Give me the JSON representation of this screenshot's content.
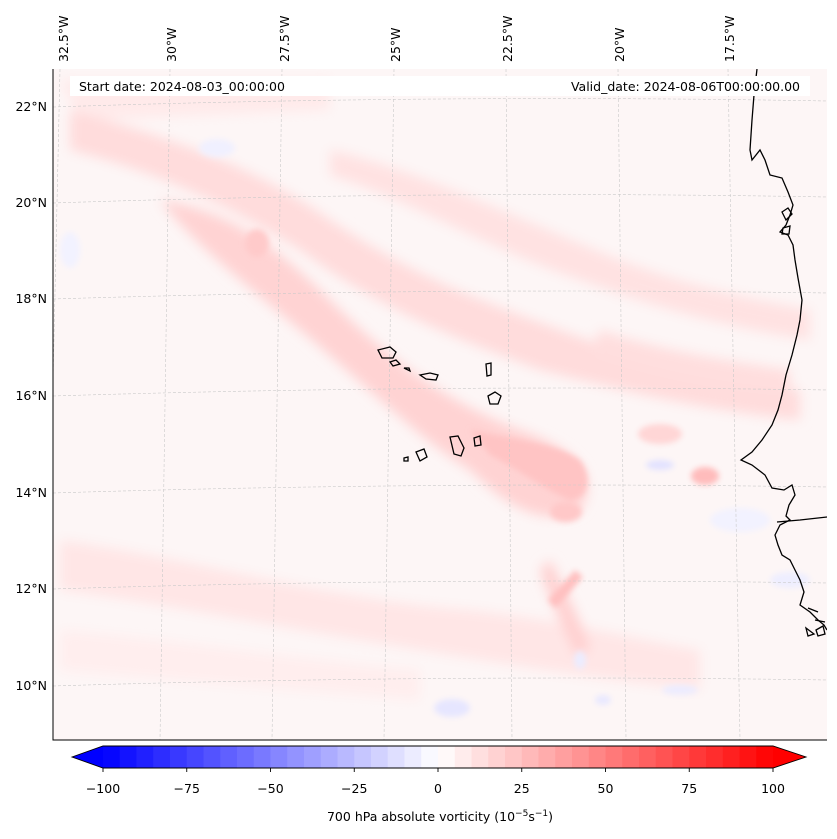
{
  "header": {
    "start_date": "Start date: 2024-08-03_00:00:00",
    "valid_date": "Valid_date: 2024-08-06T00:00:00.00"
  },
  "map": {
    "lon_labels": [
      "32.5°W",
      "30°W",
      "27.5°W",
      "25°W",
      "22.5°W",
      "20°W",
      "17.5°W"
    ],
    "lat_labels": [
      "22°N",
      "20°N",
      "18°N",
      "16°N",
      "14°N",
      "12°N",
      "10°N"
    ],
    "extent": {
      "lon_min": -33.5,
      "lon_max": -15.5,
      "lat_min": 8.9,
      "lat_max": 22.8
    }
  },
  "colorbar": {
    "ticks": [
      "−100",
      "−75",
      "−50",
      "−25",
      "0",
      "25",
      "50",
      "75",
      "100"
    ],
    "min": -100,
    "max": 100,
    "step": 5,
    "label_prefix": "700 hPa absolute vorticity (10",
    "label_exp1": "−5",
    "label_mid": "s",
    "label_exp2": "−1",
    "label_suffix": ")",
    "neg_color": "#0000ff",
    "pos_color": "#ff0000",
    "mid_color": "#ffffff"
  }
}
